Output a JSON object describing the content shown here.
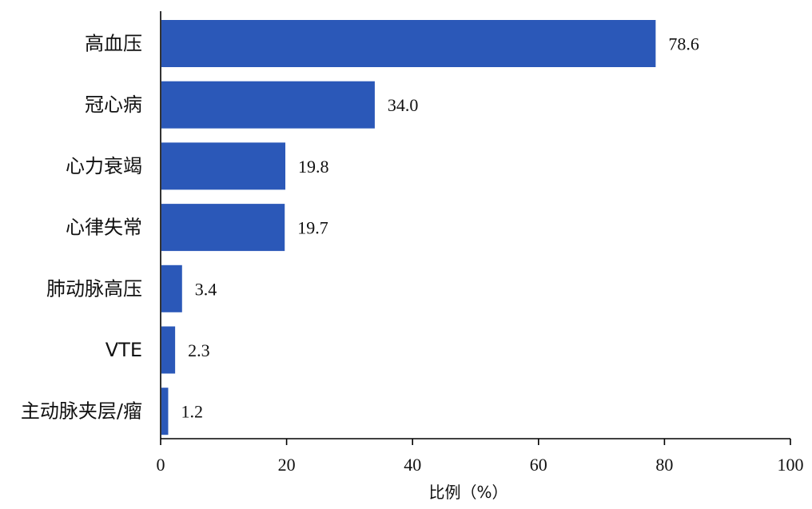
{
  "chart_data": {
    "type": "bar",
    "orientation": "horizontal",
    "categories": [
      "高血压",
      "冠心病",
      "心力衰竭",
      "心律失常",
      "肺动脉高压",
      "VTE",
      "主动脉夹层/瘤"
    ],
    "values": [
      78.6,
      34.0,
      19.8,
      19.7,
      3.4,
      2.3,
      1.2
    ],
    "value_labels": [
      "78.6",
      "34.0",
      "19.8",
      "19.7",
      "3.4",
      "2.3",
      "1.2"
    ],
    "xlabel": "比例（%）",
    "ylabel": "",
    "xlim": [
      0,
      100
    ],
    "xticks": [
      "0",
      "20",
      "40",
      "60",
      "80",
      "100"
    ],
    "grid": false,
    "bar_color": "#2b58b8"
  }
}
